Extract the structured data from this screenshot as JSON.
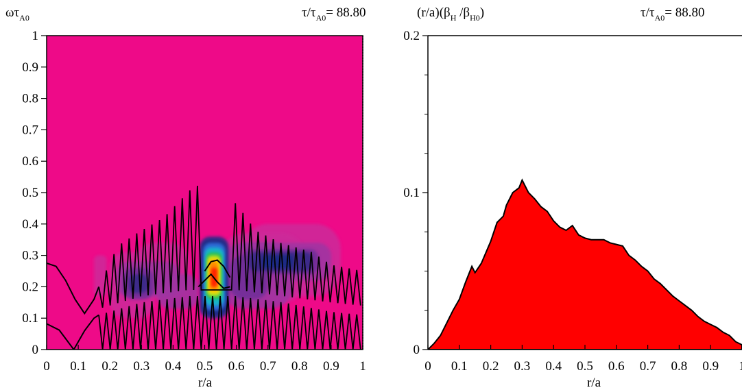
{
  "chart_data": [
    {
      "type": "heatmap",
      "ylabel": {
        "base": "ωτ",
        "sub": "A0"
      },
      "time_label": {
        "pre": "τ/τ",
        "sub": "A0",
        "post": "= 88.80"
      },
      "xlabel": "r/a",
      "xlim": [
        0,
        1
      ],
      "ylim": [
        0,
        1
      ],
      "xticks": [
        "0",
        "0.1",
        "0.2",
        "0.3",
        "0.4",
        "0.5",
        "0.6",
        "0.7",
        "0.8",
        "0.9",
        "1"
      ],
      "yticks": [
        "0",
        "0.1",
        "0.2",
        "0.3",
        "0.4",
        "0.5",
        "0.6",
        "0.7",
        "0.8",
        "0.9",
        "1"
      ],
      "colors": {
        "background": "#ee0a88",
        "levels": [
          "#cc2c9a",
          "#9e34a2",
          "#6e2e98",
          "#3d2a8a",
          "#1a2c86",
          "#2d6bd6",
          "#18b5c9",
          "#28c05a",
          "#b9df1a",
          "#ffd200",
          "#ff8a00",
          "#ff2400"
        ]
      },
      "continuum_curves": [
        [
          [
            0,
            0.275
          ],
          [
            0.03,
            0.265
          ],
          [
            0.06,
            0.22
          ],
          [
            0.09,
            0.16
          ],
          [
            0.12,
            0.115
          ],
          [
            0.15,
            0.16
          ],
          [
            0.165,
            0.2
          ]
        ],
        [
          [
            0,
            0.082
          ],
          [
            0.04,
            0.062
          ],
          [
            0.086,
            0.0
          ]
        ],
        [
          [
            0.086,
            0.0
          ],
          [
            0.12,
            0.06
          ],
          [
            0.15,
            0.1
          ],
          [
            0.165,
            0.11
          ]
        ],
        [
          [
            0.5,
            0.25
          ],
          [
            0.52,
            0.28
          ],
          [
            0.54,
            0.285
          ],
          [
            0.56,
            0.265
          ],
          [
            0.58,
            0.23
          ]
        ],
        [
          [
            0.48,
            0.2
          ],
          [
            0.5,
            0.22
          ],
          [
            0.52,
            0.24
          ],
          [
            0.54,
            0.215
          ],
          [
            0.56,
            0.195
          ],
          [
            0.58,
            0.2
          ]
        ]
      ],
      "upper_envelope": [
        [
          0.165,
          0.2
        ],
        [
          0.225,
          0.33
        ],
        [
          0.285,
          0.37
        ],
        [
          0.37,
          0.42
        ],
        [
          0.47,
          0.525
        ],
        [
          0.6,
          0.465
        ],
        [
          0.66,
          0.38
        ],
        [
          0.74,
          0.34
        ],
        [
          0.84,
          0.31
        ],
        [
          0.9,
          0.27
        ],
        [
          1.0,
          0.25
        ]
      ],
      "upper_floor": [
        [
          0.165,
          0.13
        ],
        [
          0.3,
          0.17
        ],
        [
          0.45,
          0.19
        ],
        [
          0.6,
          0.19
        ],
        [
          0.75,
          0.17
        ],
        [
          0.9,
          0.15
        ],
        [
          1.0,
          0.14
        ]
      ],
      "lower_envelope": [
        [
          0.165,
          0.11
        ],
        [
          0.3,
          0.15
        ],
        [
          0.45,
          0.17
        ],
        [
          0.6,
          0.17
        ],
        [
          0.75,
          0.15
        ],
        [
          0.9,
          0.12
        ],
        [
          1.0,
          0.11
        ]
      ],
      "lower_floor": [
        [
          0.165,
          0.0
        ],
        [
          1.0,
          0.0
        ]
      ],
      "zigzag_step": 0.024
    },
    {
      "type": "area",
      "ylabel": {
        "pre": "(r/a)(β",
        "sub1": "H",
        "mid": " /β",
        "sub2": "H0",
        "post": ")"
      },
      "time_label": {
        "pre": "τ/τ",
        "sub": "A0",
        "post": "= 88.80"
      },
      "xlabel": "r/a",
      "xlim": [
        0,
        1
      ],
      "ylim": [
        0,
        0.2
      ],
      "xticks": [
        "0",
        "0.1",
        "0.2",
        "0.3",
        "0.4",
        "0.5",
        "0.6",
        "0.7",
        "0.8",
        "0.9",
        "1"
      ],
      "yticks": [
        "0",
        "0.1",
        "0.2"
      ],
      "fill_color": "#ff0000",
      "x": [
        0,
        0.02,
        0.04,
        0.06,
        0.08,
        0.1,
        0.12,
        0.14,
        0.15,
        0.17,
        0.2,
        0.22,
        0.24,
        0.25,
        0.27,
        0.29,
        0.3,
        0.32,
        0.34,
        0.36,
        0.38,
        0.4,
        0.42,
        0.44,
        0.46,
        0.48,
        0.5,
        0.52,
        0.54,
        0.56,
        0.58,
        0.6,
        0.62,
        0.64,
        0.66,
        0.68,
        0.7,
        0.72,
        0.74,
        0.76,
        0.78,
        0.8,
        0.82,
        0.84,
        0.86,
        0.88,
        0.9,
        0.92,
        0.94,
        0.96,
        0.98,
        1.0
      ],
      "values": [
        0,
        0.004,
        0.009,
        0.017,
        0.025,
        0.032,
        0.043,
        0.053,
        0.049,
        0.055,
        0.069,
        0.081,
        0.085,
        0.092,
        0.1,
        0.103,
        0.108,
        0.1,
        0.096,
        0.091,
        0.088,
        0.082,
        0.078,
        0.076,
        0.079,
        0.073,
        0.071,
        0.07,
        0.07,
        0.07,
        0.068,
        0.067,
        0.066,
        0.06,
        0.057,
        0.053,
        0.05,
        0.045,
        0.042,
        0.038,
        0.034,
        0.031,
        0.028,
        0.025,
        0.021,
        0.018,
        0.016,
        0.014,
        0.011,
        0.009,
        0.005,
        0.003
      ]
    }
  ]
}
